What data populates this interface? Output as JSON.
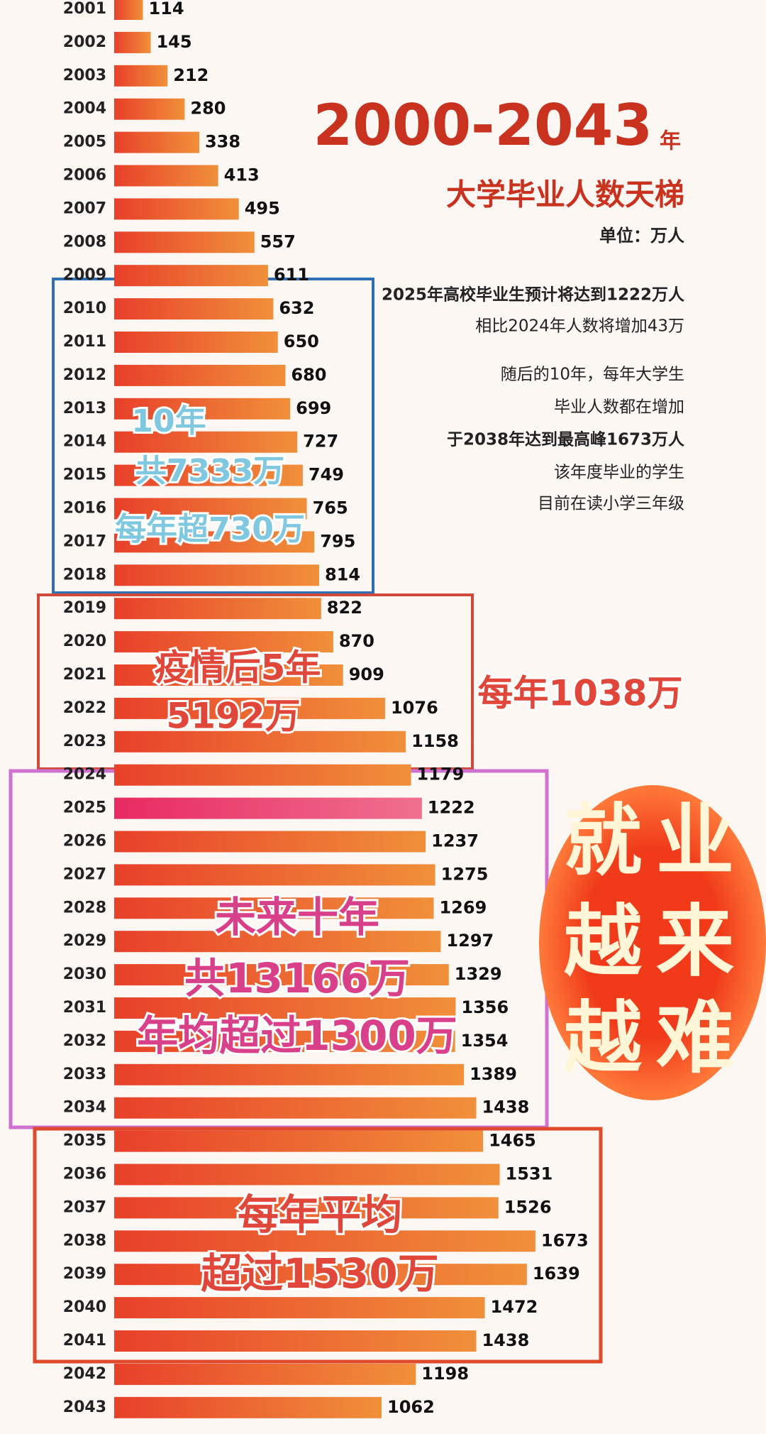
{
  "chart_data": {
    "type": "bar",
    "orientation": "horizontal",
    "title": "2000-2043",
    "title_suffix": "年",
    "subtitle": "大学毕业人数天梯",
    "unit": "单位：万人",
    "categories": [
      "2001",
      "2002",
      "2003",
      "2004",
      "2005",
      "2006",
      "2007",
      "2008",
      "2009",
      "2010",
      "2011",
      "2012",
      "2013",
      "2014",
      "2015",
      "2016",
      "2017",
      "2018",
      "2019",
      "2020",
      "2021",
      "2022",
      "2023",
      "2024",
      "2025",
      "2026",
      "2027",
      "2028",
      "2029",
      "2030",
      "2031",
      "2032",
      "2033",
      "2034",
      "2035",
      "2036",
      "2037",
      "2038",
      "2039",
      "2040",
      "2041",
      "2042",
      "2043"
    ],
    "values": [
      114,
      145,
      212,
      280,
      338,
      413,
      495,
      557,
      611,
      632,
      650,
      680,
      699,
      727,
      749,
      765,
      795,
      814,
      822,
      870,
      909,
      1076,
      1158,
      1179,
      1222,
      1237,
      1275,
      1269,
      1297,
      1329,
      1356,
      1354,
      1389,
      1438,
      1465,
      1531,
      1526,
      1673,
      1639,
      1472,
      1438,
      1198,
      1062
    ],
    "color": "#e8502a",
    "notes": [
      "2025年高校毕业生预计将达到1222万人",
      "相比2024年人数将增加43万",
      "随后的10年，每年大学生",
      "毕业人数都在增加",
      "于2038年达到最高峰1673万人",
      "该年度毕业的学生",
      "目前在读小学三年级"
    ],
    "annotations": [
      {
        "lines": [
          "10年",
          "共7333万",
          "每年超730万"
        ],
        "color": "#7fc8e0"
      },
      {
        "lines": [
          "疫情后5年",
          "5192万"
        ],
        "color": "#e0463a"
      },
      {
        "lines": [
          "每年1038万"
        ],
        "color": "#e0463a"
      },
      {
        "lines": [
          "未来十年",
          "共13166万",
          "年均超过1300万"
        ],
        "color": "#d8408a"
      },
      {
        "lines": [
          "每年平均",
          "超过1530万"
        ],
        "color": "#e0463a"
      }
    ],
    "badge": [
      "就业",
      "越来",
      "越难"
    ]
  }
}
